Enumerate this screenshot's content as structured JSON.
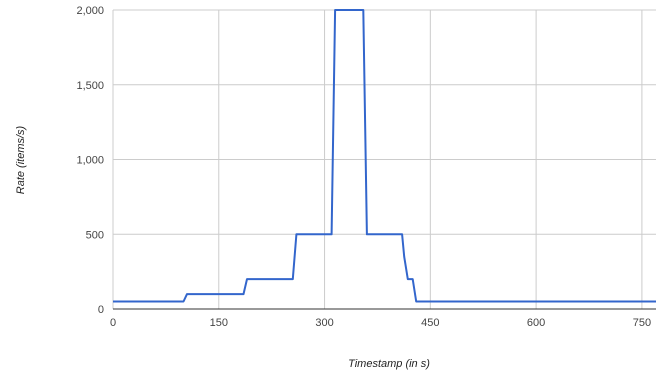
{
  "chart_data": {
    "type": "line",
    "title": "",
    "xlabel": "Timestamp (in s)",
    "ylabel": "Rate (items/s)",
    "xlim": [
      0,
      770
    ],
    "ylim": [
      0,
      2000
    ],
    "x_ticks": [
      0,
      150,
      300,
      450,
      600,
      750
    ],
    "x_tick_labels": [
      "0",
      "150",
      "300",
      "450",
      "600",
      "750"
    ],
    "y_ticks": [
      0,
      500,
      1000,
      1500,
      2000
    ],
    "y_tick_labels": [
      "0",
      "500",
      "1,000",
      "1,500",
      "2,000"
    ],
    "grid": true,
    "legend": "none",
    "series": [
      {
        "color": "#3366cc",
        "x": [
          0,
          100,
          105,
          185,
          190,
          255,
          260,
          310,
          315,
          355,
          360,
          410,
          413,
          418,
          425,
          430,
          770
        ],
        "y": [
          50,
          50,
          100,
          100,
          200,
          200,
          500,
          500,
          2000,
          2000,
          500,
          500,
          350,
          200,
          200,
          50,
          50
        ]
      }
    ]
  },
  "colors": {
    "line": "#3366cc",
    "grid": "#cccccc",
    "baseline": "#333333"
  }
}
